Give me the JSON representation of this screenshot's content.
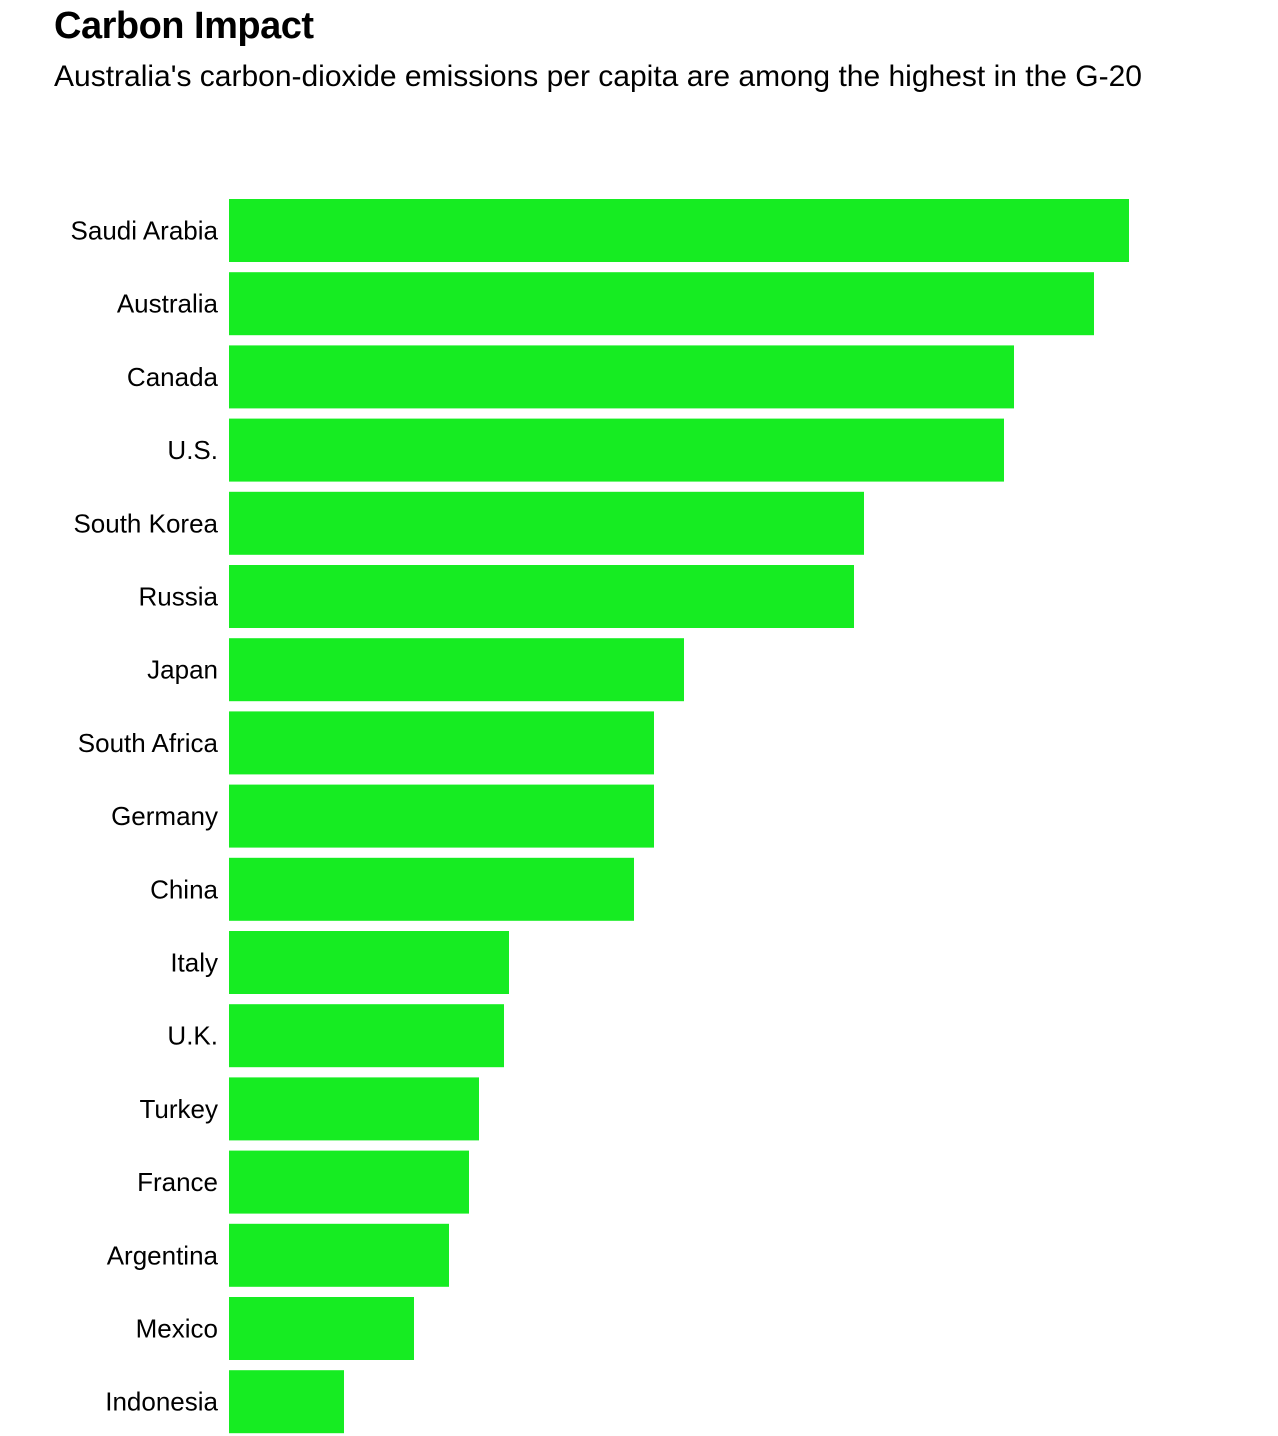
{
  "chart_data": {
    "type": "bar",
    "orientation": "horizontal",
    "title": "Carbon Impact",
    "subtitle": "Australia's carbon-dioxide emissions per capita are among the highest in the G-20",
    "categories": [
      "Saudi Arabia",
      "Australia",
      "Canada",
      "U.S.",
      "South Korea",
      "Russia",
      "Japan",
      "South Africa",
      "Germany",
      "China",
      "Italy",
      "U.K.",
      "Turkey",
      "France",
      "Argentina",
      "Mexico",
      "Indonesia"
    ],
    "values": [
      18.0,
      17.3,
      15.7,
      15.5,
      12.7,
      12.5,
      9.1,
      8.5,
      8.5,
      8.1,
      5.6,
      5.5,
      5.0,
      4.8,
      4.4,
      3.7,
      2.3
    ],
    "bar_color": "#16ec22",
    "axis_visible": false,
    "grid": false,
    "legend": "none"
  }
}
